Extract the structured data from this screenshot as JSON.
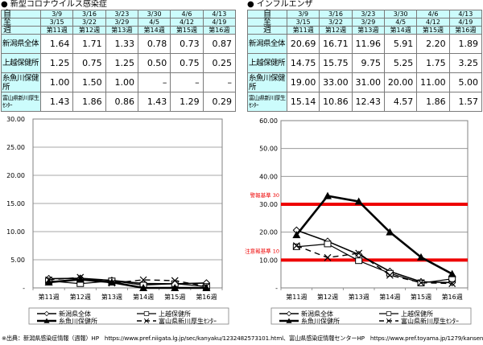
{
  "covid": {
    "title": "● 新型コロナウイルス感染症",
    "header": {
      "from_label": "自",
      "to_label": "至",
      "week_label": "週",
      "from": [
        "3/9",
        "3/16",
        "3/23",
        "3/30",
        "4/6",
        "4/13"
      ],
      "to": [
        "3/15",
        "3/22",
        "3/29",
        "4/5",
        "4/12",
        "4/19"
      ],
      "weeks": [
        "第11週",
        "第12週",
        "第13週",
        "第14週",
        "第15週",
        "第16週"
      ]
    },
    "rows": [
      {
        "label": "新潟県全体",
        "values": [
          "1.64",
          "1.71",
          "1.33",
          "0.78",
          "0.73",
          "0.87"
        ]
      },
      {
        "label": "上越保健所",
        "values": [
          "1.25",
          "0.75",
          "1.25",
          "0.50",
          "0.75",
          "0.25"
        ]
      },
      {
        "label": "糸魚川保健所",
        "values": [
          "1.00",
          "1.50",
          "1.00",
          "–",
          "–",
          "–"
        ]
      },
      {
        "label": "富山県新川厚生ｾﾝﾀｰ",
        "values": [
          "1.43",
          "1.86",
          "0.86",
          "1.43",
          "1.29",
          "0.29"
        ]
      }
    ]
  },
  "influenza": {
    "title": "● インフルエンザ",
    "header": {
      "from_label": "自",
      "to_label": "至",
      "week_label": "週",
      "from": [
        "3/9",
        "3/16",
        "3/23",
        "3/30",
        "4/6",
        "4/13"
      ],
      "to": [
        "3/15",
        "3/22",
        "3/29",
        "4/5",
        "4/12",
        "4/19"
      ],
      "weeks": [
        "第11週",
        "第12週",
        "第13週",
        "第14週",
        "第15週",
        "第16週"
      ]
    },
    "rows": [
      {
        "label": "新潟県全体",
        "values": [
          "20.69",
          "16.71",
          "11.96",
          "5.91",
          "2.20",
          "1.89"
        ]
      },
      {
        "label": "上越保健所",
        "values": [
          "14.75",
          "15.75",
          "9.75",
          "5.25",
          "1.75",
          "3.25"
        ]
      },
      {
        "label": "糸魚川保健所",
        "values": [
          "19.00",
          "33.00",
          "31.00",
          "20.00",
          "11.00",
          "5.00"
        ]
      },
      {
        "label": "富山県新川厚生ｾﾝﾀｰ",
        "values": [
          "15.14",
          "10.86",
          "12.43",
          "4.57",
          "1.86",
          "1.57"
        ]
      }
    ]
  },
  "legend": {
    "niigata": "新潟県全体",
    "joetsu": "上越保健所",
    "itoigawa": "糸魚川保健所",
    "toyama": "富山県新川厚生ｾﾝﾀｰ"
  },
  "colors": {
    "header_bg": "#ccfcfc",
    "threshold_red": "#ee0000",
    "line": "#000000"
  },
  "chart_data": [
    {
      "type": "line",
      "title": "新型コロナウイルス感染症",
      "categories": [
        "第11週",
        "第12週",
        "第13週",
        "第14週",
        "第15週",
        "第16週"
      ],
      "ylim": [
        0,
        30
      ],
      "yticks": [
        "-",
        "5.00",
        "10.00",
        "15.00",
        "20.00",
        "25.00",
        "30.00"
      ],
      "grid": true,
      "legend_position": "bottom",
      "series": [
        {
          "name": "新潟県全体",
          "marker": "diamond-open",
          "values": [
            1.64,
            1.71,
            1.33,
            0.78,
            0.73,
            0.87
          ]
        },
        {
          "name": "上越保健所",
          "marker": "square-open",
          "values": [
            1.25,
            0.75,
            1.25,
            0.5,
            0.75,
            0.25
          ]
        },
        {
          "name": "糸魚川保健所",
          "marker": "triangle-filled",
          "values": [
            1.0,
            1.5,
            1.0,
            0,
            0,
            0
          ]
        },
        {
          "name": "富山県新川厚生ｾﾝﾀｰ",
          "marker": "x",
          "dashed": true,
          "values": [
            1.43,
            1.86,
            0.86,
            1.43,
            1.29,
            0.29
          ]
        }
      ]
    },
    {
      "type": "line",
      "title": "インフルエンザ",
      "categories": [
        "第11週",
        "第12週",
        "第13週",
        "第14週",
        "第15週",
        "第16週"
      ],
      "ylim": [
        0,
        60
      ],
      "yticks": [
        "-",
        "10.00",
        "20.00",
        "30.00",
        "40.00",
        "50.00",
        "60.00"
      ],
      "grid": true,
      "legend_position": "bottom",
      "annotations": [
        {
          "label": "警報基準 30",
          "y": 30,
          "color": "#ee0000"
        },
        {
          "label": "注意報基準 10",
          "y": 10,
          "color": "#ee0000"
        }
      ],
      "series": [
        {
          "name": "新潟県全体",
          "marker": "diamond-open",
          "values": [
            20.69,
            16.71,
            11.96,
            5.91,
            2.2,
            1.89
          ]
        },
        {
          "name": "上越保健所",
          "marker": "square-open",
          "values": [
            14.75,
            15.75,
            9.75,
            5.25,
            1.75,
            3.25
          ]
        },
        {
          "name": "糸魚川保健所",
          "marker": "triangle-filled",
          "values": [
            19.0,
            33.0,
            31.0,
            20.0,
            11.0,
            5.0
          ]
        },
        {
          "name": "富山県新川厚生ｾﾝﾀｰ",
          "marker": "x",
          "dashed": true,
          "values": [
            15.14,
            10.86,
            12.43,
            4.57,
            1.86,
            1.57
          ]
        }
      ]
    }
  ],
  "footer": {
    "source": "※出典：新潟県感染症情報（週報）HP　https://www.pref.niigata.lg.jp/sec/kanyaku/1232482573101.html、富山県感染症情報センターHP　https://www.pref.toyama.jp/1279/kansen/"
  }
}
